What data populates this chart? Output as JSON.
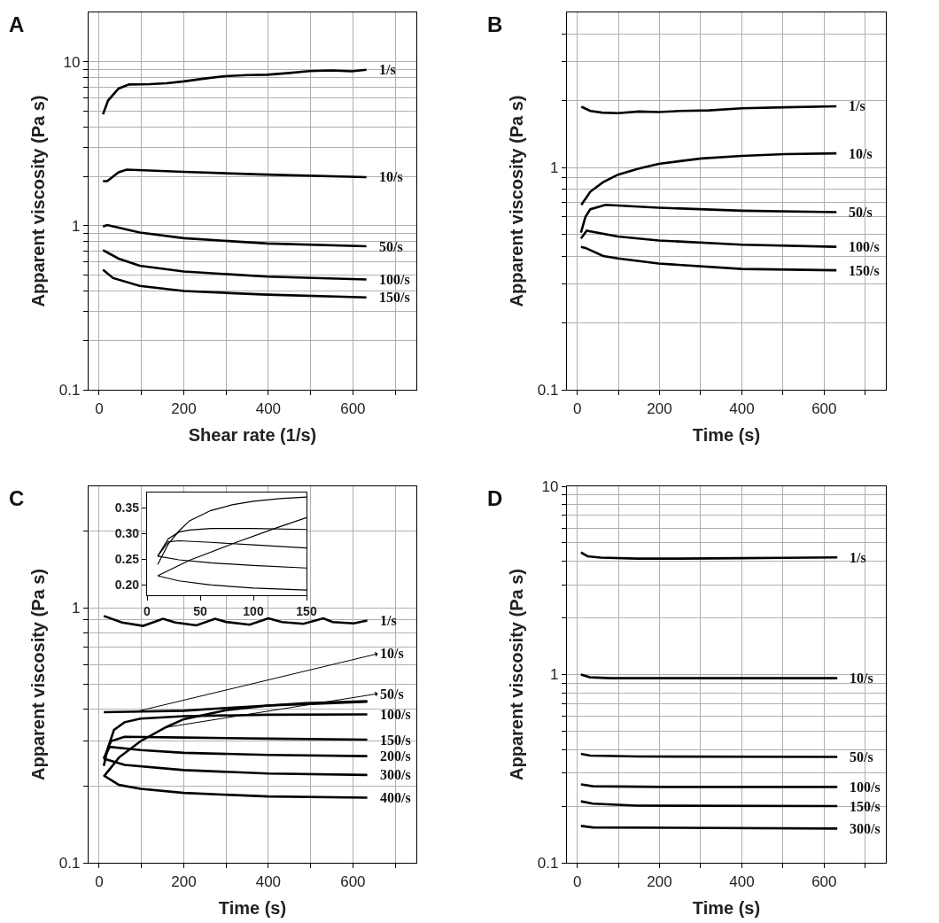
{
  "chart_data": [
    {
      "type": "line",
      "title": "A",
      "xlabel": "Shear rate (1/s)",
      "ylabel": "Apparent viscosity (Pa s)",
      "log": true,
      "grid": true,
      "line_style": "solid",
      "xlim": [
        -25,
        750
      ],
      "xticks": [
        0,
        {
          "value": 100,
          "label": null
        },
        200,
        {
          "value": 300,
          "label": null
        },
        400,
        {
          "value": 500,
          "label": null
        },
        600,
        {
          "value": 700,
          "label": null
        }
      ],
      "ylim": [
        0.1,
        20
      ],
      "yticks": [
        0.1,
        {
          "value": 0.2,
          "label": null
        },
        {
          "value": 0.3,
          "label": null
        },
        {
          "value": 0.4,
          "label": null
        },
        {
          "value": 0.5,
          "label": null
        },
        {
          "value": 0.6,
          "label": null
        },
        {
          "value": 0.7,
          "label": null
        },
        {
          "value": 0.8,
          "label": null
        },
        {
          "value": 0.9,
          "label": null
        },
        1,
        {
          "value": 2,
          "label": null
        },
        {
          "value": 3,
          "label": null
        },
        {
          "value": 4,
          "label": null
        },
        {
          "value": 5,
          "label": null
        },
        {
          "value": 6,
          "label": null
        },
        {
          "value": 7,
          "label": null
        },
        {
          "value": 8,
          "label": null
        },
        {
          "value": 9,
          "label": null
        },
        10
      ],
      "series": [
        {
          "name": "1/s",
          "color": "#000000",
          "x": [
            9,
            21,
            46,
            71,
            120,
            159,
            200,
            246,
            297,
            350,
            397,
            450,
            497,
            550,
            597,
            632
          ],
          "values": [
            4.78,
            5.8,
            6.87,
            7.27,
            7.3,
            7.4,
            7.59,
            7.88,
            8.16,
            8.3,
            8.34,
            8.55,
            8.78,
            8.85,
            8.75,
            8.93
          ]
        },
        {
          "name": "10/s",
          "color": "#000000",
          "x": [
            9,
            19,
            46,
            65,
            200,
            397,
            632
          ],
          "values": [
            1.87,
            1.87,
            2.12,
            2.2,
            2.13,
            2.05,
            1.98
          ]
        },
        {
          "name": "50/s",
          "color": "#000000",
          "x": [
            9,
            19,
            96,
            200,
            397,
            632
          ],
          "values": [
            0.99,
            1.01,
            0.91,
            0.84,
            0.78,
            0.75
          ]
        },
        {
          "name": "100/s",
          "color": "#000000",
          "x": [
            9,
            46,
            96,
            200,
            397,
            632
          ],
          "values": [
            0.71,
            0.63,
            0.57,
            0.526,
            0.49,
            0.47
          ]
        },
        {
          "name": "150/s",
          "color": "#000000",
          "x": [
            9,
            33,
            96,
            200,
            397,
            632
          ],
          "values": [
            0.54,
            0.48,
            0.43,
            0.4,
            0.38,
            0.366
          ]
        }
      ]
    },
    {
      "type": "line",
      "title": "B",
      "xlabel": "Time (s)",
      "ylabel": "Apparent viscosity (Pa s)",
      "log": true,
      "grid": true,
      "line_style": "solid",
      "xlim": [
        -25,
        750
      ],
      "xticks": [
        0,
        {
          "value": 100,
          "label": null
        },
        200,
        {
          "value": 300,
          "label": null
        },
        400,
        {
          "value": 500,
          "label": null
        },
        600,
        {
          "value": 700,
          "label": null
        }
      ],
      "ylim": [
        0.1,
        5
      ],
      "yticks": [
        0.1,
        {
          "value": 0.2,
          "label": null
        },
        {
          "value": 0.3,
          "label": null
        },
        {
          "value": 0.4,
          "label": null
        },
        {
          "value": 0.5,
          "label": null
        },
        {
          "value": 0.6,
          "label": null
        },
        {
          "value": 0.7,
          "label": null
        },
        {
          "value": 0.8,
          "label": null
        },
        {
          "value": 0.9,
          "label": null
        },
        1,
        {
          "value": 2,
          "label": null
        },
        {
          "value": 3,
          "label": null
        },
        {
          "value": 4,
          "label": null
        }
      ],
      "series": [
        {
          "name": "1/s",
          "color": "#000000",
          "x": [
            10,
            32,
            60,
            99,
            150,
            198,
            250,
            320,
            400,
            504,
            630
          ],
          "values": [
            1.88,
            1.8,
            1.77,
            1.76,
            1.79,
            1.78,
            1.8,
            1.81,
            1.85,
            1.87,
            1.89
          ]
        },
        {
          "name": "10/s",
          "color": "#000000",
          "x": [
            10,
            32,
            63,
            99,
            150,
            198,
            250,
            302,
            400,
            504,
            630
          ],
          "values": [
            0.68,
            0.78,
            0.86,
            0.93,
            0.99,
            1.04,
            1.07,
            1.1,
            1.13,
            1.15,
            1.16
          ]
        },
        {
          "name": "50/s",
          "color": "#000000",
          "x": [
            9,
            20,
            32,
            69,
            198,
            400,
            630
          ],
          "values": [
            0.51,
            0.6,
            0.65,
            0.68,
            0.66,
            0.64,
            0.63
          ]
        },
        {
          "name": "100/s",
          "color": "#000000",
          "x": [
            9,
            23,
            99,
            198,
            400,
            630
          ],
          "values": [
            0.48,
            0.52,
            0.49,
            0.47,
            0.45,
            0.44
          ]
        },
        {
          "name": "150/s",
          "color": "#000000",
          "x": [
            9,
            20,
            63,
            99,
            198,
            400,
            630
          ],
          "values": [
            0.44,
            0.435,
            0.4,
            0.39,
            0.37,
            0.35,
            0.345
          ]
        }
      ]
    },
    {
      "type": "line",
      "title": "C",
      "xlabel": "Time (s)",
      "ylabel": "Apparent viscosity (Pa s)",
      "log": true,
      "grid": true,
      "line_style": "solid",
      "xlim": [
        -25,
        750
      ],
      "xticks": [
        0,
        {
          "value": 100,
          "label": null
        },
        200,
        {
          "value": 300,
          "label": null
        },
        400,
        {
          "value": 500,
          "label": null
        },
        600,
        {
          "value": 700,
          "label": null
        }
      ],
      "ylim": [
        0.1,
        3
      ],
      "yticks": [
        0.1,
        {
          "value": 0.2,
          "label": null
        },
        {
          "value": 0.3,
          "label": null
        },
        {
          "value": 0.4,
          "label": null
        },
        {
          "value": 0.5,
          "label": null
        },
        {
          "value": 0.6,
          "label": null
        },
        {
          "value": 0.7,
          "label": null
        },
        {
          "value": 0.8,
          "label": null
        },
        {
          "value": 0.9,
          "label": null
        },
        1,
        {
          "value": 2,
          "label": null
        }
      ],
      "annotations": [
        {
          "text": "10/s",
          "x": 82,
          "y": 0.39
        },
        {
          "text": "50/s",
          "x": 159,
          "y": 0.34
        }
      ],
      "series": [
        {
          "name": "1/s",
          "color": "#000000",
          "x": [
            11,
            54,
            104,
            151,
            180,
            230,
            274,
            300,
            356,
            400,
            432,
            483,
            530,
            552,
            602,
            634
          ],
          "values": [
            0.93,
            0.876,
            0.85,
            0.906,
            0.876,
            0.854,
            0.906,
            0.881,
            0.859,
            0.91,
            0.88,
            0.866,
            0.91,
            0.88,
            0.87,
            0.893
          ]
        },
        {
          "color": "#000000",
          "x": [
            11,
            100,
            200,
            300,
            400,
            500,
            634
          ],
          "values": [
            0.39,
            0.392,
            0.395,
            0.405,
            0.414,
            0.42,
            0.428
          ]
        },
        {
          "color": "#000000",
          "x": [
            11,
            47,
            98,
            159,
            200,
            300,
            400,
            489,
            634
          ],
          "values": [
            0.218,
            0.259,
            0.3,
            0.341,
            0.366,
            0.397,
            0.414,
            0.423,
            0.431
          ]
        },
        {
          "name": "100/s",
          "color": "#000000",
          "x": [
            11,
            20,
            35,
            60,
            98,
            200,
            400,
            634
          ],
          "values": [
            0.24,
            0.28,
            0.332,
            0.356,
            0.368,
            0.376,
            0.381,
            0.382
          ]
        },
        {
          "name": "150/s",
          "color": "#000000",
          "x": [
            11,
            28,
            60,
            200,
            400,
            634
          ],
          "values": [
            0.256,
            0.3,
            0.312,
            0.31,
            0.307,
            0.304
          ]
        },
        {
          "name": "200/s",
          "color": "#000000",
          "x": [
            11,
            25,
            98,
            200,
            400,
            634
          ],
          "values": [
            0.256,
            0.285,
            0.277,
            0.27,
            0.265,
            0.262
          ]
        },
        {
          "name": "300/s",
          "color": "#000000",
          "x": [
            11,
            60,
            200,
            400,
            634
          ],
          "values": [
            0.256,
            0.242,
            0.231,
            0.224,
            0.221
          ]
        },
        {
          "name": "400/s",
          "color": "#000000",
          "x": [
            11,
            47,
            98,
            200,
            400,
            634
          ],
          "values": [
            0.22,
            0.202,
            0.195,
            0.188,
            0.182,
            0.18
          ]
        }
      ]
    },
    {
      "type": "line",
      "line_style": "solid",
      "xlim": [
        0,
        150
      ],
      "xticks": [
        0,
        50,
        100,
        150
      ],
      "ylim": [
        0.18,
        0.38
      ],
      "yticks": [
        {
          "value": 0.2,
          "label": "0.20"
        },
        {
          "value": 0.25,
          "label": "0.25"
        },
        {
          "value": 0.3,
          "label": "0.30"
        },
        {
          "value": 0.35,
          "label": "0.35"
        }
      ],
      "series": [
        {
          "color": "#000000",
          "x": [
            10,
            20,
            30,
            40,
            60,
            80,
            100,
            125,
            150
          ],
          "values": [
            0.24,
            0.28,
            0.305,
            0.325,
            0.345,
            0.356,
            0.363,
            0.368,
            0.371
          ]
        },
        {
          "color": "#000000",
          "x": [
            10,
            20,
            30,
            40,
            60,
            100,
            150
          ],
          "values": [
            0.256,
            0.29,
            0.303,
            0.307,
            0.31,
            0.31,
            0.308
          ]
        },
        {
          "color": "#000000",
          "x": [
            10,
            20,
            30,
            60,
            100,
            150
          ],
          "values": [
            0.256,
            0.284,
            0.286,
            0.283,
            0.278,
            0.272
          ]
        },
        {
          "color": "#000000",
          "x": [
            10,
            30,
            60,
            100,
            150
          ],
          "values": [
            0.256,
            0.249,
            0.243,
            0.238,
            0.233
          ]
        },
        {
          "color": "#000000",
          "x": [
            10,
            30,
            60,
            100,
            150
          ],
          "values": [
            0.218,
            0.208,
            0.2,
            0.194,
            0.19
          ]
        },
        {
          "color": "#000000",
          "x": [
            10,
            40,
            80,
            120,
            150
          ],
          "values": [
            0.218,
            0.248,
            0.28,
            0.31,
            0.331
          ]
        }
      ]
    },
    {
      "type": "line",
      "title": "D",
      "xlabel": "Time (s)",
      "ylabel": "Apparent viscosity (Pa s)",
      "log": true,
      "grid": true,
      "line_style": "solid",
      "xlim": [
        -25,
        750
      ],
      "xticks": [
        0,
        {
          "value": 100,
          "label": null
        },
        200,
        {
          "value": 300,
          "label": null
        },
        400,
        {
          "value": 500,
          "label": null
        },
        600,
        {
          "value": 700,
          "label": null
        }
      ],
      "ylim": [
        0.1,
        10
      ],
      "yticks": [
        0.1,
        {
          "value": 0.2,
          "label": null
        },
        {
          "value": 0.3,
          "label": null
        },
        {
          "value": 0.4,
          "label": null
        },
        {
          "value": 0.5,
          "label": null
        },
        {
          "value": 0.6,
          "label": null
        },
        {
          "value": 0.7,
          "label": null
        },
        {
          "value": 0.8,
          "label": null
        },
        {
          "value": 0.9,
          "label": null
        },
        1,
        {
          "value": 2,
          "label": null
        },
        {
          "value": 3,
          "label": null
        },
        {
          "value": 4,
          "label": null
        },
        {
          "value": 5,
          "label": null
        },
        {
          "value": 6,
          "label": null
        },
        {
          "value": 7,
          "label": null
        },
        {
          "value": 8,
          "label": null
        },
        {
          "value": 9,
          "label": null
        },
        10
      ],
      "series": [
        {
          "name": "1/s",
          "color": "#000000",
          "x": [
            9,
            25,
            57,
            145,
            250,
            396,
            500,
            632
          ],
          "values": [
            4.45,
            4.25,
            4.18,
            4.13,
            4.13,
            4.15,
            4.17,
            4.19
          ]
        },
        {
          "name": "10/s",
          "color": "#000000",
          "x": [
            9,
            31,
            82,
            300,
            632
          ],
          "values": [
            1.0,
            0.967,
            0.956,
            0.956,
            0.956
          ]
        },
        {
          "name": "50/s",
          "color": "#000000",
          "x": [
            9,
            31,
            145,
            632
          ],
          "values": [
            0.379,
            0.371,
            0.367,
            0.365
          ]
        },
        {
          "name": "100/s",
          "color": "#000000",
          "x": [
            9,
            38,
            207,
            632
          ],
          "values": [
            0.261,
            0.255,
            0.253,
            0.253
          ]
        },
        {
          "name": "150/s",
          "color": "#000000",
          "x": [
            9,
            38,
            145,
            632
          ],
          "values": [
            0.212,
            0.206,
            0.201,
            0.2
          ]
        },
        {
          "name": "300/s",
          "color": "#000000",
          "x": [
            9,
            38,
            632
          ],
          "values": [
            0.157,
            0.154,
            0.152
          ]
        }
      ]
    }
  ]
}
